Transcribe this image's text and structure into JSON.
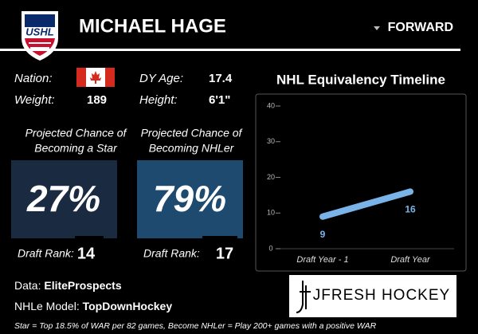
{
  "header": {
    "league": "USHL",
    "name": "MICHAEL HAGE",
    "position": "FORWARD"
  },
  "bio": {
    "nation_label": "Nation:",
    "dy_age_label": "DY Age:",
    "dy_age": "17.4",
    "weight_label": "Weight:",
    "weight": "189",
    "height_label": "Height:",
    "height": "6'1\""
  },
  "projections": [
    {
      "caption": [
        "Projected Chance of",
        "Becoming a Star"
      ],
      "value": "27%",
      "rank_label": "Draft Rank:",
      "rank": "14"
    },
    {
      "caption": [
        "Projected Chance of",
        "Becoming NHLer"
      ],
      "value": "79%",
      "rank_label": "Draft Rank:",
      "rank": "17"
    }
  ],
  "chart_data": {
    "type": "line",
    "title": "NHL Equivalency Timeline",
    "categories": [
      "Draft Year - 1",
      "Draft Year"
    ],
    "values": [
      9,
      16
    ],
    "color": "#7ab3e8",
    "ylim": [
      0,
      40
    ],
    "yticks": [
      0,
      10,
      20,
      30,
      40
    ],
    "grid": false
  },
  "sources": {
    "data_label": "Data:",
    "data": "EliteProspects",
    "model_label": "NHLe Model:",
    "model": "TopDownHockey",
    "brand": "JFRESH HOCKEY"
  },
  "footnote": "Star = Top 18.5% of WAR per 82 games, Become NHLer = Play 200+ games with a positive WAR"
}
